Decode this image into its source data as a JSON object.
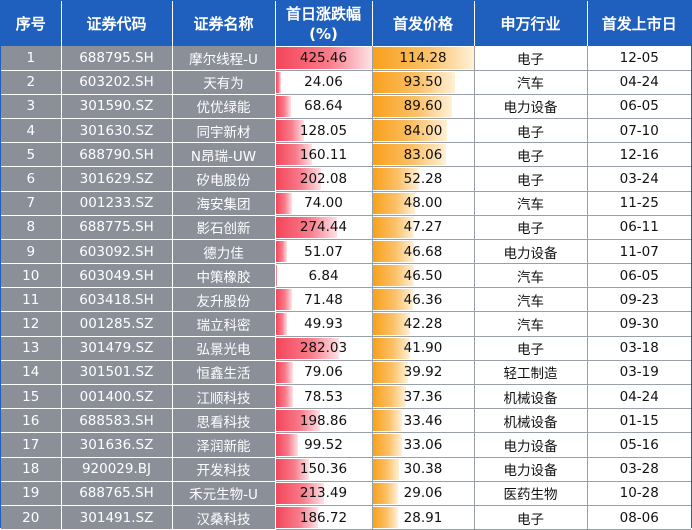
{
  "headers": {
    "index": "序号",
    "code": "证券代码",
    "name": "证券名称",
    "change_line1": "首日涨跌幅",
    "change_line2": "(%)",
    "price": "首发价格",
    "industry": "申万行业",
    "date": "首发上市日"
  },
  "colors": {
    "header_bg": "#1f5fbd",
    "dark_cell_bg": "#8a8f98",
    "change_bar": "#f4465a",
    "price_bar": "#f9a01b"
  },
  "scales": {
    "change_max": 425.46,
    "price_max": 114.28
  },
  "rows": [
    {
      "index": "1",
      "code": "688795.SH",
      "name": "摩尔线程-U",
      "change": "425.46",
      "price": "114.28",
      "industry": "电子",
      "date": "12-05"
    },
    {
      "index": "2",
      "code": "603202.SH",
      "name": "天有为",
      "change": "24.06",
      "price": "93.50",
      "industry": "汽车",
      "date": "04-24"
    },
    {
      "index": "3",
      "code": "301590.SZ",
      "name": "优优绿能",
      "change": "68.64",
      "price": "89.60",
      "industry": "电力设备",
      "date": "06-05"
    },
    {
      "index": "4",
      "code": "301630.SZ",
      "name": "同宇新材",
      "change": "128.05",
      "price": "84.00",
      "industry": "电子",
      "date": "07-10"
    },
    {
      "index": "5",
      "code": "688790.SH",
      "name": "N昂瑞-UW",
      "change": "160.11",
      "price": "83.06",
      "industry": "电子",
      "date": "12-16"
    },
    {
      "index": "6",
      "code": "301629.SZ",
      "name": "矽电股份",
      "change": "202.08",
      "price": "52.28",
      "industry": "电子",
      "date": "03-24"
    },
    {
      "index": "7",
      "code": "001233.SZ",
      "name": "海安集团",
      "change": "74.00",
      "price": "48.00",
      "industry": "汽车",
      "date": "11-25"
    },
    {
      "index": "8",
      "code": "688775.SH",
      "name": "影石创新",
      "change": "274.44",
      "price": "47.27",
      "industry": "电子",
      "date": "06-11"
    },
    {
      "index": "9",
      "code": "603092.SH",
      "name": "德力佳",
      "change": "51.07",
      "price": "46.68",
      "industry": "电力设备",
      "date": "11-07"
    },
    {
      "index": "10",
      "code": "603049.SH",
      "name": "中策橡胶",
      "change": "6.84",
      "price": "46.50",
      "industry": "汽车",
      "date": "06-05"
    },
    {
      "index": "11",
      "code": "603418.SH",
      "name": "友升股份",
      "change": "71.48",
      "price": "46.36",
      "industry": "汽车",
      "date": "09-23"
    },
    {
      "index": "12",
      "code": "001285.SZ",
      "name": "瑞立科密",
      "change": "49.93",
      "price": "42.28",
      "industry": "汽车",
      "date": "09-30"
    },
    {
      "index": "13",
      "code": "301479.SZ",
      "name": "弘景光电",
      "change": "282.03",
      "price": "41.90",
      "industry": "电子",
      "date": "03-18"
    },
    {
      "index": "14",
      "code": "301501.SZ",
      "name": "恒鑫生活",
      "change": "79.06",
      "price": "39.92",
      "industry": "轻工制造",
      "date": "03-19"
    },
    {
      "index": "15",
      "code": "001400.SZ",
      "name": "江顺科技",
      "change": "78.53",
      "price": "37.36",
      "industry": "机械设备",
      "date": "04-24"
    },
    {
      "index": "16",
      "code": "688583.SH",
      "name": "思看科技",
      "change": "198.86",
      "price": "33.46",
      "industry": "机械设备",
      "date": "01-15"
    },
    {
      "index": "17",
      "code": "301636.SZ",
      "name": "泽润新能",
      "change": "99.52",
      "price": "33.06",
      "industry": "电力设备",
      "date": "05-16"
    },
    {
      "index": "18",
      "code": "920029.BJ",
      "name": "开发科技",
      "change": "150.36",
      "price": "30.38",
      "industry": "电力设备",
      "date": "03-28"
    },
    {
      "index": "19",
      "code": "688765.SH",
      "name": "禾元生物-U",
      "change": "213.49",
      "price": "29.06",
      "industry": "医药生物",
      "date": "10-28"
    },
    {
      "index": "20",
      "code": "301491.SZ",
      "name": "汉桑科技",
      "change": "186.72",
      "price": "28.91",
      "industry": "电子",
      "date": "08-06"
    }
  ]
}
